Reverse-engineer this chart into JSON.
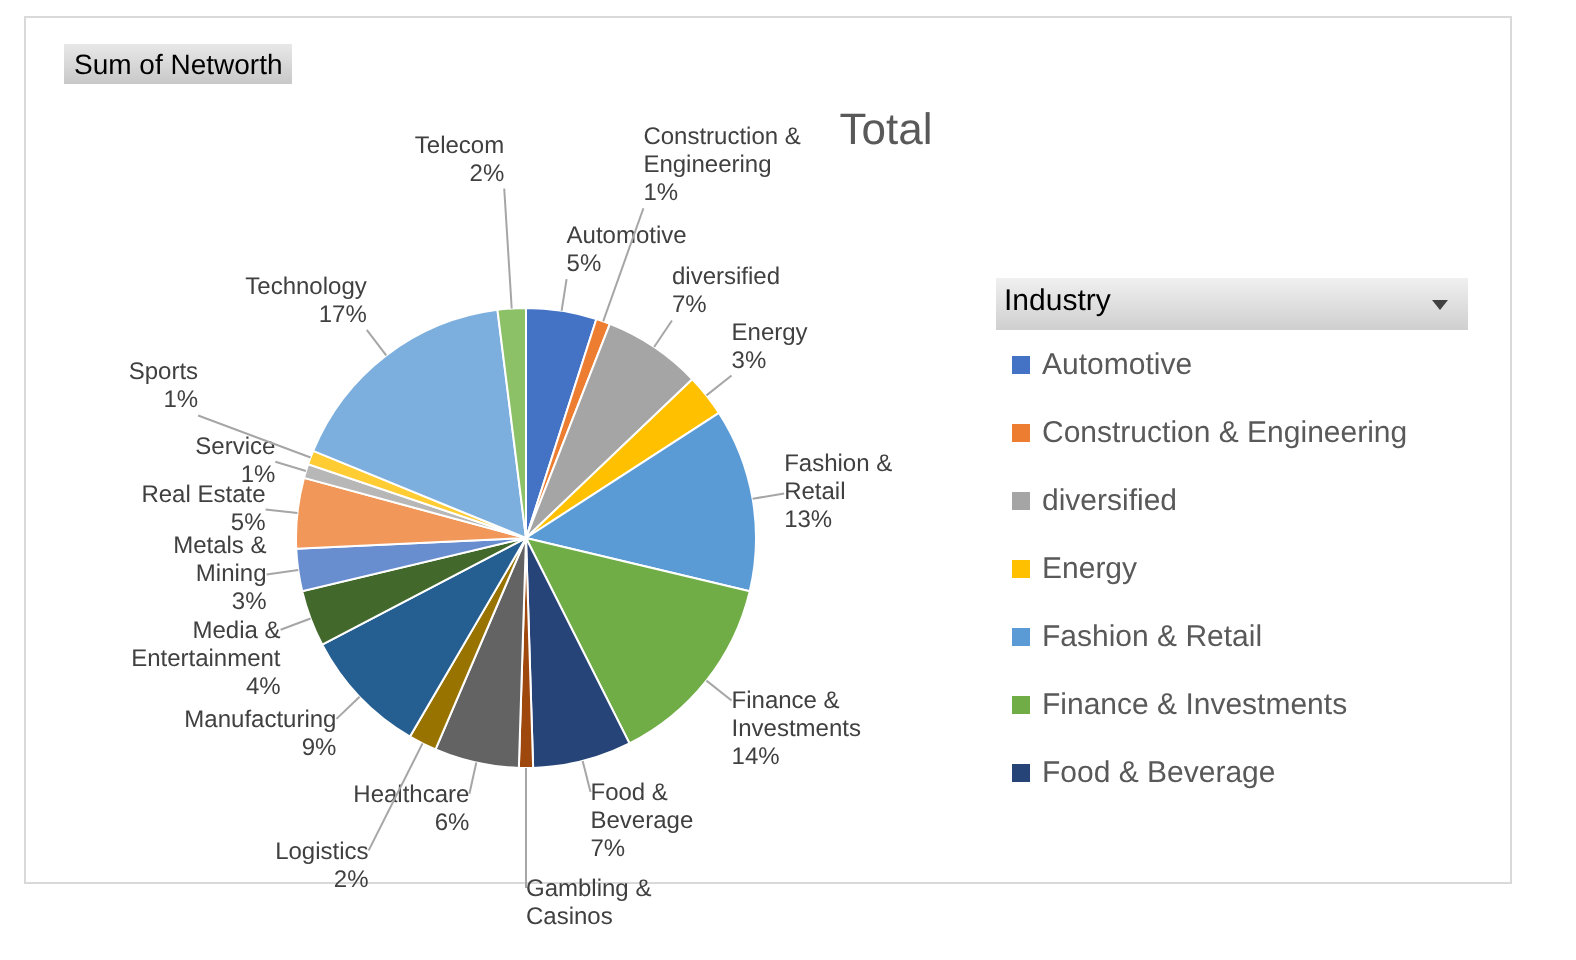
{
  "chart_data": {
    "type": "pie",
    "title": "Total",
    "legend_title": "Industry",
    "legend": "right",
    "data_labels": true,
    "annotations": [
      "Sum of Networth"
    ],
    "categories": [
      "Automotive",
      "Construction & Engineering",
      "diversified",
      "Energy",
      "Fashion & Retail",
      "Finance & Investments",
      "Food & Beverage",
      "Gambling & Casinos",
      "Healthcare",
      "Logistics",
      "Manufacturing",
      "Media & Entertainment",
      "Metals & Mining",
      "Real Estate",
      "Service",
      "Sports",
      "Technology",
      "Telecom"
    ],
    "values": [
      5,
      1,
      7,
      3,
      13,
      14,
      7,
      1,
      6,
      2,
      9,
      4,
      3,
      5,
      1,
      1,
      17,
      2
    ],
    "value_labels": [
      "5%",
      "1%",
      "7%",
      "3%",
      "13%",
      "14%",
      "7%",
      null,
      "6%",
      "2%",
      "9%",
      "4%",
      "3%",
      "5%",
      "1%",
      "1%",
      "17%",
      "2%"
    ],
    "colors": [
      "#4472c4",
      "#ed7d31",
      "#a5a5a5",
      "#ffc000",
      "#5b9bd5",
      "#70ad47",
      "#264478",
      "#9e480e",
      "#636363",
      "#997300",
      "#255e91",
      "#43682b",
      "#698ed0",
      "#f1975a",
      "#b7b7b7",
      "#ffcd33",
      "#7cafdd",
      "#8cc168"
    ]
  }
}
